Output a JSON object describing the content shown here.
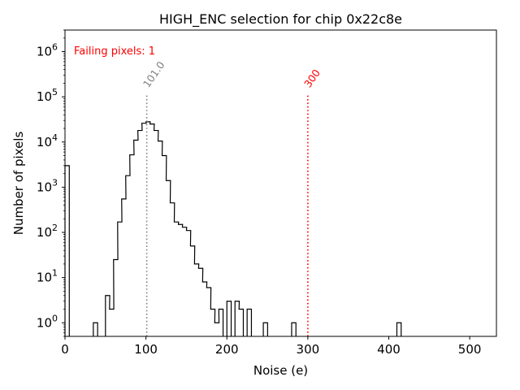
{
  "chart_data": {
    "type": "histogram",
    "title": "HIGH_ENC selection for chip 0x22c8e",
    "xlabel": "Noise (e)",
    "ylabel": "Number of pixels",
    "xlim": [
      0,
      533
    ],
    "ylim": [
      0.5,
      3000000
    ],
    "yscale": "log",
    "grid": false,
    "x_ticks": [
      0,
      100,
      200,
      300,
      400,
      500
    ],
    "y_ticks": [
      {
        "value": 1,
        "base": "10",
        "exp": "0"
      },
      {
        "value": 10,
        "base": "10",
        "exp": "1"
      },
      {
        "value": 100,
        "base": "10",
        "exp": "2"
      },
      {
        "value": 1000,
        "base": "10",
        "exp": "3"
      },
      {
        "value": 10000,
        "base": "10",
        "exp": "4"
      },
      {
        "value": 100000,
        "base": "10",
        "exp": "5"
      },
      {
        "value": 1000000,
        "base": "10",
        "exp": "6"
      }
    ],
    "series": [
      {
        "bin_width": 5.3,
        "line_color": "#000000",
        "bins": [
          [
            0,
            3000
          ],
          [
            35,
            1
          ],
          [
            50,
            4
          ],
          [
            55,
            2
          ],
          [
            60,
            25
          ],
          [
            65,
            170
          ],
          [
            70,
            550
          ],
          [
            75,
            1800
          ],
          [
            80,
            5200
          ],
          [
            85,
            11000
          ],
          [
            90,
            18000
          ],
          [
            95,
            26000
          ],
          [
            100,
            28000
          ],
          [
            105,
            25000
          ],
          [
            110,
            18000
          ],
          [
            115,
            10500
          ],
          [
            120,
            5000
          ],
          [
            125,
            1400
          ],
          [
            130,
            450
          ],
          [
            135,
            170
          ],
          [
            140,
            150
          ],
          [
            145,
            130
          ],
          [
            150,
            110
          ],
          [
            155,
            50
          ],
          [
            160,
            20
          ],
          [
            165,
            16
          ],
          [
            170,
            8
          ],
          [
            175,
            6
          ],
          [
            180,
            2
          ],
          [
            185,
            1
          ],
          [
            190,
            2
          ],
          [
            200,
            3
          ],
          [
            210,
            3
          ],
          [
            215,
            2
          ],
          [
            225,
            2
          ],
          [
            245,
            1
          ],
          [
            280,
            1
          ],
          [
            410,
            1
          ]
        ]
      }
    ],
    "annotations": {
      "failing_text": "Failing pixels: 1",
      "failing_color": "#ff0000",
      "mean_line": {
        "x": 101.0,
        "label": "101.0",
        "color": "#808080",
        "y_top": 120000
      },
      "threshold_line": {
        "x": 300,
        "label": "300",
        "color": "#ff0000",
        "y_top": 120000
      }
    }
  }
}
